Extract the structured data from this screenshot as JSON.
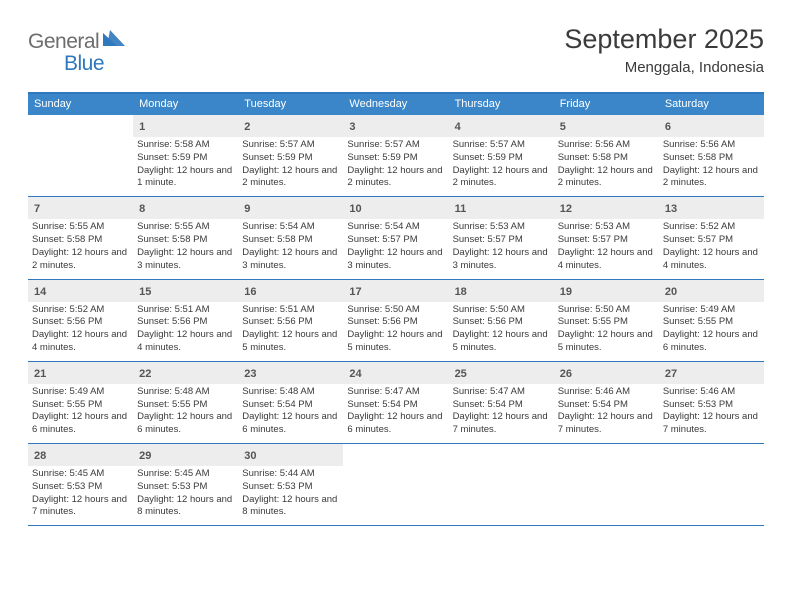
{
  "brand": {
    "part1": "General",
    "part2": "Blue"
  },
  "title": "September 2025",
  "location": "Menggala, Indonesia",
  "colors": {
    "accent": "#3a86c8",
    "accent_dark": "#2f78bd",
    "gray_bg": "#ededed",
    "text": "#3a3a3a",
    "logo_gray": "#6d6d6d"
  },
  "weekdays": [
    "Sunday",
    "Monday",
    "Tuesday",
    "Wednesday",
    "Thursday",
    "Friday",
    "Saturday"
  ],
  "weeks": [
    [
      null,
      {
        "n": "1",
        "sunrise": "5:58 AM",
        "sunset": "5:59 PM",
        "daylight": "12 hours and 1 minute."
      },
      {
        "n": "2",
        "sunrise": "5:57 AM",
        "sunset": "5:59 PM",
        "daylight": "12 hours and 2 minutes."
      },
      {
        "n": "3",
        "sunrise": "5:57 AM",
        "sunset": "5:59 PM",
        "daylight": "12 hours and 2 minutes."
      },
      {
        "n": "4",
        "sunrise": "5:57 AM",
        "sunset": "5:59 PM",
        "daylight": "12 hours and 2 minutes."
      },
      {
        "n": "5",
        "sunrise": "5:56 AM",
        "sunset": "5:58 PM",
        "daylight": "12 hours and 2 minutes."
      },
      {
        "n": "6",
        "sunrise": "5:56 AM",
        "sunset": "5:58 PM",
        "daylight": "12 hours and 2 minutes."
      }
    ],
    [
      {
        "n": "7",
        "sunrise": "5:55 AM",
        "sunset": "5:58 PM",
        "daylight": "12 hours and 2 minutes."
      },
      {
        "n": "8",
        "sunrise": "5:55 AM",
        "sunset": "5:58 PM",
        "daylight": "12 hours and 3 minutes."
      },
      {
        "n": "9",
        "sunrise": "5:54 AM",
        "sunset": "5:58 PM",
        "daylight": "12 hours and 3 minutes."
      },
      {
        "n": "10",
        "sunrise": "5:54 AM",
        "sunset": "5:57 PM",
        "daylight": "12 hours and 3 minutes."
      },
      {
        "n": "11",
        "sunrise": "5:53 AM",
        "sunset": "5:57 PM",
        "daylight": "12 hours and 3 minutes."
      },
      {
        "n": "12",
        "sunrise": "5:53 AM",
        "sunset": "5:57 PM",
        "daylight": "12 hours and 4 minutes."
      },
      {
        "n": "13",
        "sunrise": "5:52 AM",
        "sunset": "5:57 PM",
        "daylight": "12 hours and 4 minutes."
      }
    ],
    [
      {
        "n": "14",
        "sunrise": "5:52 AM",
        "sunset": "5:56 PM",
        "daylight": "12 hours and 4 minutes."
      },
      {
        "n": "15",
        "sunrise": "5:51 AM",
        "sunset": "5:56 PM",
        "daylight": "12 hours and 4 minutes."
      },
      {
        "n": "16",
        "sunrise": "5:51 AM",
        "sunset": "5:56 PM",
        "daylight": "12 hours and 5 minutes."
      },
      {
        "n": "17",
        "sunrise": "5:50 AM",
        "sunset": "5:56 PM",
        "daylight": "12 hours and 5 minutes."
      },
      {
        "n": "18",
        "sunrise": "5:50 AM",
        "sunset": "5:56 PM",
        "daylight": "12 hours and 5 minutes."
      },
      {
        "n": "19",
        "sunrise": "5:50 AM",
        "sunset": "5:55 PM",
        "daylight": "12 hours and 5 minutes."
      },
      {
        "n": "20",
        "sunrise": "5:49 AM",
        "sunset": "5:55 PM",
        "daylight": "12 hours and 6 minutes."
      }
    ],
    [
      {
        "n": "21",
        "sunrise": "5:49 AM",
        "sunset": "5:55 PM",
        "daylight": "12 hours and 6 minutes."
      },
      {
        "n": "22",
        "sunrise": "5:48 AM",
        "sunset": "5:55 PM",
        "daylight": "12 hours and 6 minutes."
      },
      {
        "n": "23",
        "sunrise": "5:48 AM",
        "sunset": "5:54 PM",
        "daylight": "12 hours and 6 minutes."
      },
      {
        "n": "24",
        "sunrise": "5:47 AM",
        "sunset": "5:54 PM",
        "daylight": "12 hours and 6 minutes."
      },
      {
        "n": "25",
        "sunrise": "5:47 AM",
        "sunset": "5:54 PM",
        "daylight": "12 hours and 7 minutes."
      },
      {
        "n": "26",
        "sunrise": "5:46 AM",
        "sunset": "5:54 PM",
        "daylight": "12 hours and 7 minutes."
      },
      {
        "n": "27",
        "sunrise": "5:46 AM",
        "sunset": "5:53 PM",
        "daylight": "12 hours and 7 minutes."
      }
    ],
    [
      {
        "n": "28",
        "sunrise": "5:45 AM",
        "sunset": "5:53 PM",
        "daylight": "12 hours and 7 minutes."
      },
      {
        "n": "29",
        "sunrise": "5:45 AM",
        "sunset": "5:53 PM",
        "daylight": "12 hours and 8 minutes."
      },
      {
        "n": "30",
        "sunrise": "5:44 AM",
        "sunset": "5:53 PM",
        "daylight": "12 hours and 8 minutes."
      },
      null,
      null,
      null,
      null
    ]
  ],
  "labels": {
    "sunrise_prefix": "Sunrise: ",
    "sunset_prefix": "Sunset: ",
    "daylight_prefix": "Daylight: "
  }
}
